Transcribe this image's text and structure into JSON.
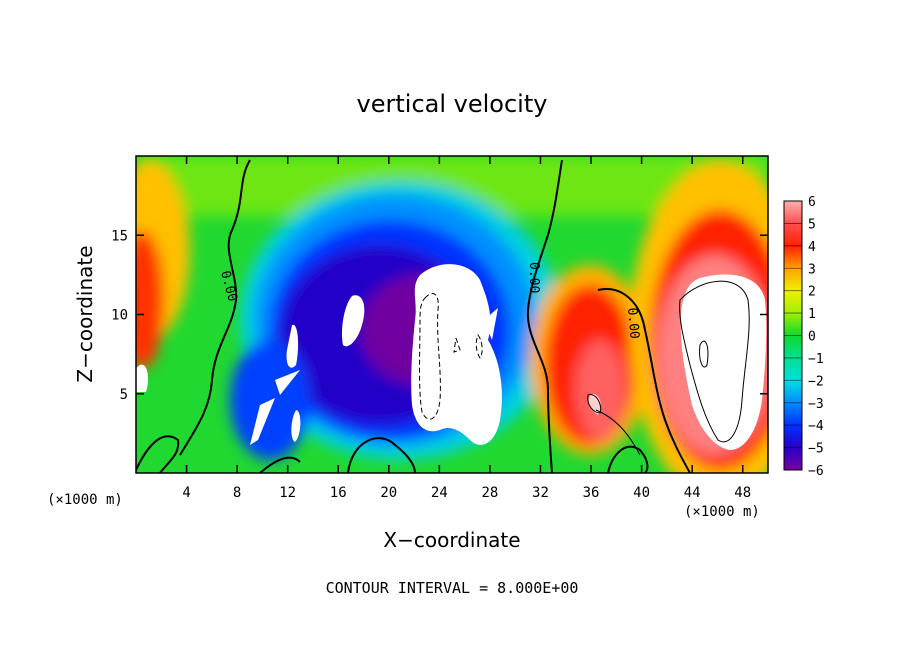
{
  "chart_data": {
    "type": "heatmap",
    "title": "vertical velocity",
    "xlabel": "X−coordinate",
    "ylabel": "Z−coordinate",
    "x_unit_left": "(×1000 m)",
    "x_unit_right": "(×1000 m)",
    "footer": "CONTOUR INTERVAL = 8.000E+00",
    "xlim": [
      0,
      50
    ],
    "ylim": [
      0,
      20
    ],
    "xticks": [
      "4",
      "8",
      "12",
      "16",
      "20",
      "24",
      "28",
      "32",
      "36",
      "40",
      "44",
      "48"
    ],
    "yticks": [
      "5",
      "10",
      "15"
    ],
    "colorbar": {
      "range": [
        -6,
        6
      ],
      "labels": [
        "6",
        "5",
        "4",
        "3",
        "2",
        "1",
        "0",
        "−1",
        "−2",
        "−3",
        "−4",
        "−5",
        "−6"
      ]
    },
    "contour_labels": [
      "0.00",
      "0.00",
      "0.00"
    ]
  }
}
